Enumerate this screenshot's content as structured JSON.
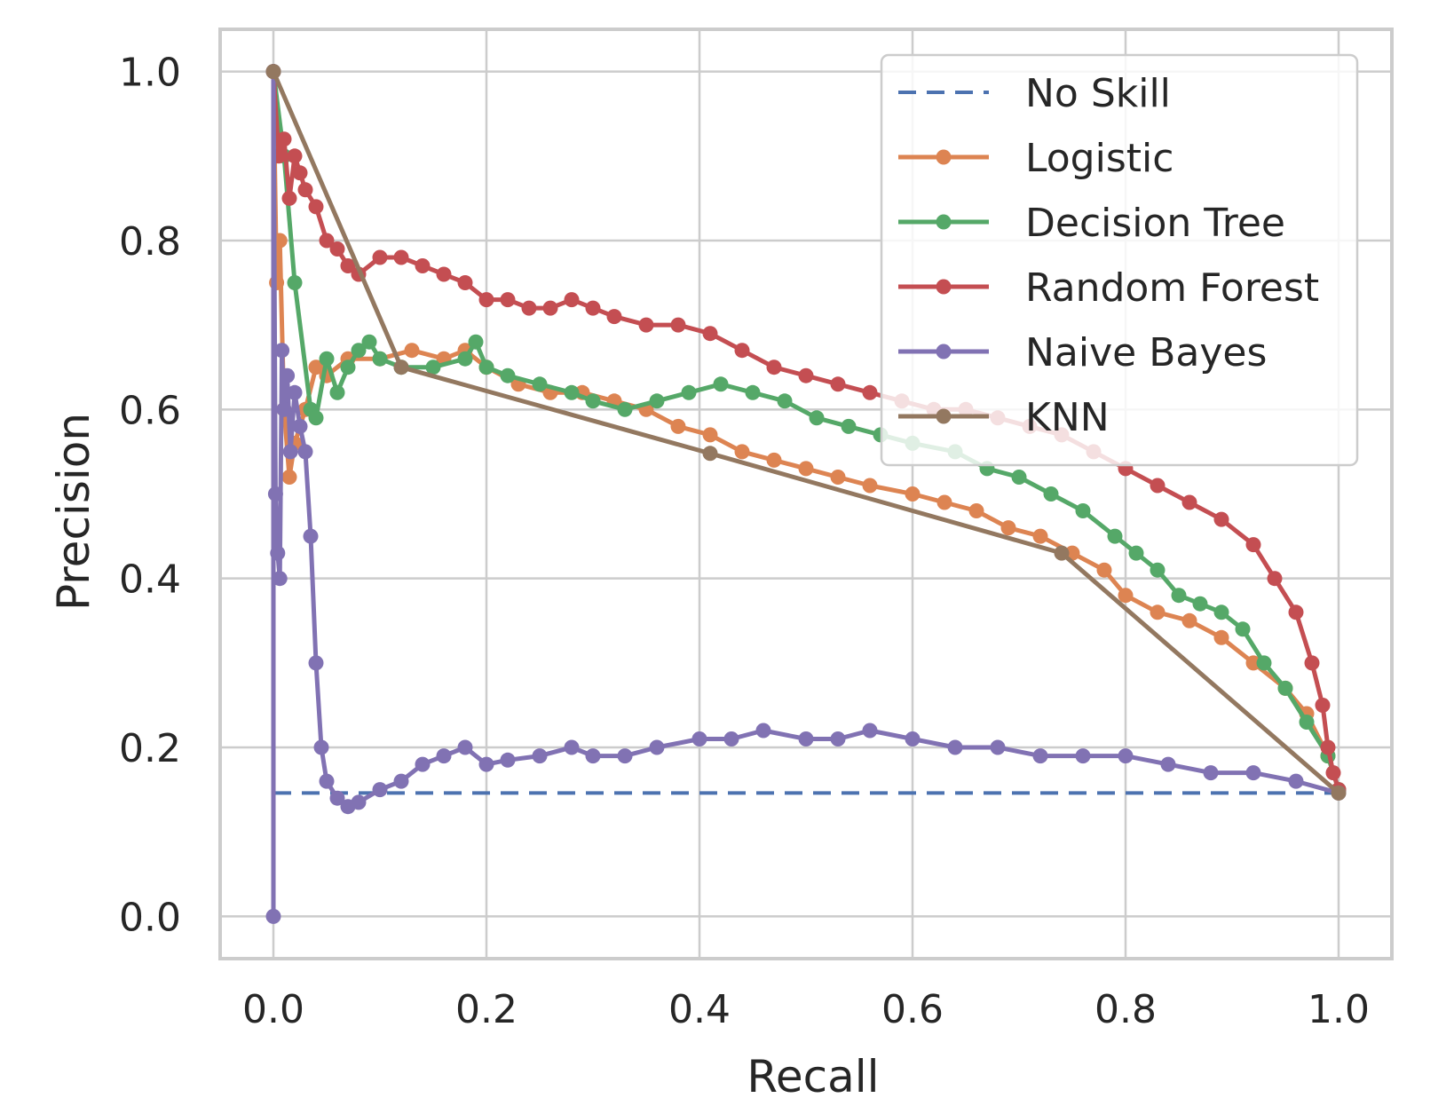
{
  "chart_data": {
    "type": "line",
    "title": "",
    "xlabel": "Recall",
    "ylabel": "Precision",
    "xlim": [
      -0.05,
      1.05
    ],
    "ylim": [
      -0.05,
      1.05
    ],
    "xticks": [
      "0.0",
      "0.2",
      "0.4",
      "0.6",
      "0.8",
      "1.0"
    ],
    "yticks": [
      "0.0",
      "0.2",
      "0.4",
      "0.6",
      "0.8",
      "1.0"
    ],
    "grid": true,
    "legend_position": "top-right",
    "series": [
      {
        "name": "No Skill",
        "color": "#4c72b0",
        "style": "dashed",
        "markers": false,
        "x": [
          0.0,
          1.0
        ],
        "y": [
          0.146,
          0.146
        ]
      },
      {
        "name": "Logistic",
        "color": "#dd8452",
        "style": "solid",
        "markers": true,
        "x": [
          0.0,
          0.003,
          0.006,
          0.01,
          0.015,
          0.02,
          0.03,
          0.04,
          0.05,
          0.07,
          0.1,
          0.13,
          0.16,
          0.18,
          0.2,
          0.23,
          0.26,
          0.29,
          0.32,
          0.35,
          0.38,
          0.41,
          0.44,
          0.47,
          0.5,
          0.53,
          0.56,
          0.6,
          0.63,
          0.66,
          0.69,
          0.72,
          0.75,
          0.78,
          0.8,
          0.83,
          0.86,
          0.89,
          0.92,
          0.95,
          0.97,
          0.99,
          1.0
        ],
        "y": [
          1.0,
          0.75,
          0.8,
          0.6,
          0.52,
          0.56,
          0.6,
          0.65,
          0.64,
          0.66,
          0.66,
          0.67,
          0.66,
          0.67,
          0.65,
          0.63,
          0.62,
          0.62,
          0.61,
          0.6,
          0.58,
          0.57,
          0.55,
          0.54,
          0.53,
          0.52,
          0.51,
          0.5,
          0.49,
          0.48,
          0.46,
          0.45,
          0.43,
          0.41,
          0.38,
          0.36,
          0.35,
          0.33,
          0.3,
          0.27,
          0.24,
          0.19,
          0.15
        ]
      },
      {
        "name": "Decision Tree",
        "color": "#55a868",
        "style": "solid",
        "markers": true,
        "x": [
          0.0,
          0.01,
          0.02,
          0.035,
          0.04,
          0.05,
          0.06,
          0.07,
          0.08,
          0.09,
          0.1,
          0.12,
          0.15,
          0.18,
          0.19,
          0.2,
          0.22,
          0.25,
          0.28,
          0.3,
          0.33,
          0.36,
          0.39,
          0.42,
          0.45,
          0.48,
          0.51,
          0.54,
          0.57,
          0.6,
          0.64,
          0.67,
          0.7,
          0.73,
          0.76,
          0.79,
          0.81,
          0.83,
          0.85,
          0.87,
          0.89,
          0.91,
          0.93,
          0.95,
          0.97,
          0.99,
          1.0
        ],
        "y": [
          1.0,
          0.9,
          0.75,
          0.6,
          0.59,
          0.66,
          0.62,
          0.65,
          0.67,
          0.68,
          0.66,
          0.65,
          0.65,
          0.66,
          0.68,
          0.65,
          0.64,
          0.63,
          0.62,
          0.61,
          0.6,
          0.61,
          0.62,
          0.63,
          0.62,
          0.61,
          0.59,
          0.58,
          0.57,
          0.56,
          0.55,
          0.53,
          0.52,
          0.5,
          0.48,
          0.45,
          0.43,
          0.41,
          0.38,
          0.37,
          0.36,
          0.34,
          0.3,
          0.27,
          0.23,
          0.19,
          0.15
        ]
      },
      {
        "name": "Random Forest",
        "color": "#c44e52",
        "style": "solid",
        "markers": true,
        "x": [
          0.0,
          0.005,
          0.01,
          0.015,
          0.02,
          0.025,
          0.03,
          0.04,
          0.05,
          0.06,
          0.07,
          0.08,
          0.1,
          0.12,
          0.14,
          0.16,
          0.18,
          0.2,
          0.22,
          0.24,
          0.26,
          0.28,
          0.3,
          0.32,
          0.35,
          0.38,
          0.41,
          0.44,
          0.47,
          0.5,
          0.53,
          0.56,
          0.59,
          0.62,
          0.65,
          0.68,
          0.71,
          0.74,
          0.77,
          0.8,
          0.83,
          0.86,
          0.89,
          0.92,
          0.94,
          0.96,
          0.975,
          0.985,
          0.99,
          0.995,
          1.0
        ],
        "y": [
          1.0,
          0.9,
          0.92,
          0.85,
          0.9,
          0.88,
          0.86,
          0.84,
          0.8,
          0.79,
          0.77,
          0.76,
          0.78,
          0.78,
          0.77,
          0.76,
          0.75,
          0.73,
          0.73,
          0.72,
          0.72,
          0.73,
          0.72,
          0.71,
          0.7,
          0.7,
          0.69,
          0.67,
          0.65,
          0.64,
          0.63,
          0.62,
          0.61,
          0.6,
          0.6,
          0.59,
          0.58,
          0.57,
          0.55,
          0.53,
          0.51,
          0.49,
          0.47,
          0.44,
          0.4,
          0.36,
          0.3,
          0.25,
          0.2,
          0.17,
          0.15
        ]
      },
      {
        "name": "Naive Bayes",
        "color": "#8172b3",
        "style": "solid",
        "markers": true,
        "x": [
          0.0,
          0.0,
          0.002,
          0.004,
          0.006,
          0.008,
          0.01,
          0.013,
          0.016,
          0.02,
          0.025,
          0.03,
          0.035,
          0.04,
          0.045,
          0.05,
          0.06,
          0.07,
          0.08,
          0.1,
          0.12,
          0.14,
          0.16,
          0.18,
          0.2,
          0.22,
          0.25,
          0.28,
          0.3,
          0.33,
          0.36,
          0.4,
          0.43,
          0.46,
          0.5,
          0.53,
          0.56,
          0.6,
          0.64,
          0.68,
          0.72,
          0.76,
          0.8,
          0.84,
          0.88,
          0.92,
          0.96,
          1.0
        ],
        "y": [
          0.0,
          1.0,
          0.5,
          0.43,
          0.4,
          0.67,
          0.6,
          0.64,
          0.55,
          0.62,
          0.58,
          0.55,
          0.45,
          0.3,
          0.2,
          0.16,
          0.14,
          0.13,
          0.135,
          0.15,
          0.16,
          0.18,
          0.19,
          0.2,
          0.18,
          0.185,
          0.19,
          0.2,
          0.19,
          0.19,
          0.2,
          0.21,
          0.21,
          0.22,
          0.21,
          0.21,
          0.22,
          0.21,
          0.2,
          0.2,
          0.19,
          0.19,
          0.19,
          0.18,
          0.17,
          0.17,
          0.16,
          0.146
        ]
      },
      {
        "name": "KNN",
        "color": "#937860",
        "style": "solid",
        "markers": true,
        "x": [
          0.0,
          0.12,
          0.41,
          0.74,
          1.0
        ],
        "y": [
          1.0,
          0.65,
          0.548,
          0.43,
          0.146
        ]
      }
    ]
  }
}
